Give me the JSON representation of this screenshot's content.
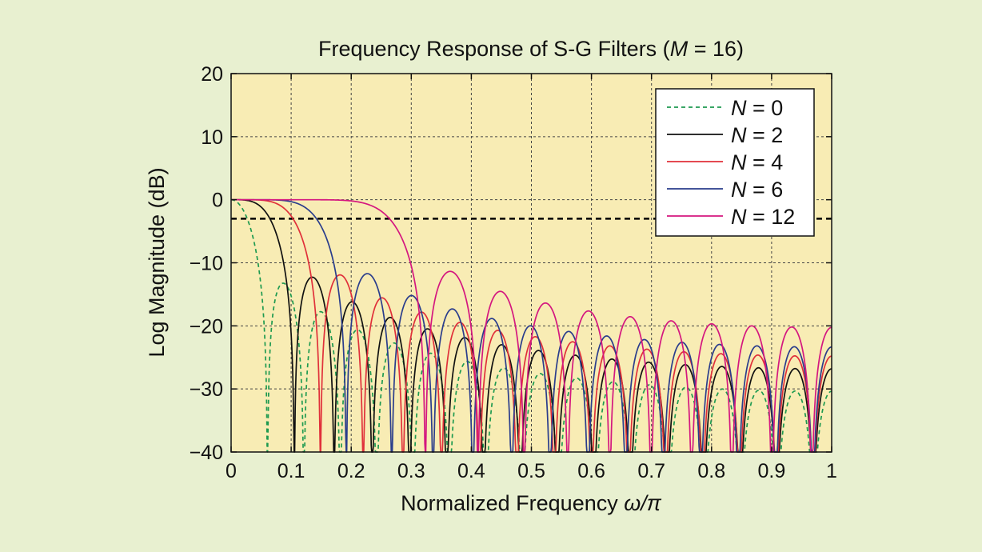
{
  "chart_data": {
    "type": "line",
    "title_prefix": "Frequency Response of S-G Filters (",
    "title_var": "M",
    "title_suffix": " = 16)",
    "xlabel_prefix": "Normalized Frequency ",
    "xlabel_var": "ω/π",
    "ylabel": "Log Magnitude (dB)",
    "xlim": [
      0,
      1
    ],
    "ylim": [
      -40,
      20
    ],
    "x_ticks": [
      0,
      0.1,
      0.2,
      0.3,
      0.4,
      0.5,
      0.6,
      0.7,
      0.8,
      0.9,
      1
    ],
    "x_tick_labels": [
      "0",
      "0.1",
      "0.2",
      "0.3",
      "0.4",
      "0.5",
      "0.6",
      "0.7",
      "0.8",
      "0.9",
      "1"
    ],
    "y_ticks": [
      20,
      10,
      0,
      -10,
      -20,
      -30,
      -40
    ],
    "y_tick_labels": [
      "20",
      "10",
      "0",
      "−10",
      "−20",
      "−30",
      "−40"
    ],
    "grid": true,
    "legend_position": "top-right",
    "reference_line": {
      "y": -3,
      "style": "dashed",
      "color": "#000000"
    },
    "frame_length": 33,
    "series": [
      {
        "var": "N",
        "value_label": " = 0",
        "order": 0,
        "color": "#1e9a50",
        "dash": "dashed"
      },
      {
        "var": "N",
        "value_label": " = 2",
        "order": 2,
        "color": "#111111",
        "dash": "solid"
      },
      {
        "var": "N",
        "value_label": " = 4",
        "order": 4,
        "color": "#e0303a",
        "dash": "solid"
      },
      {
        "var": "N",
        "value_label": " = 6",
        "order": 6,
        "color": "#2a3d8c",
        "dash": "solid"
      },
      {
        "var": "N",
        "value_label": " = 12",
        "order": 12,
        "color": "#d4177f",
        "dash": "solid"
      }
    ],
    "colors": {
      "page_background": "#e8f0d0",
      "plot_background": "#f8ecb4",
      "legend_background": "#ffffff"
    }
  }
}
